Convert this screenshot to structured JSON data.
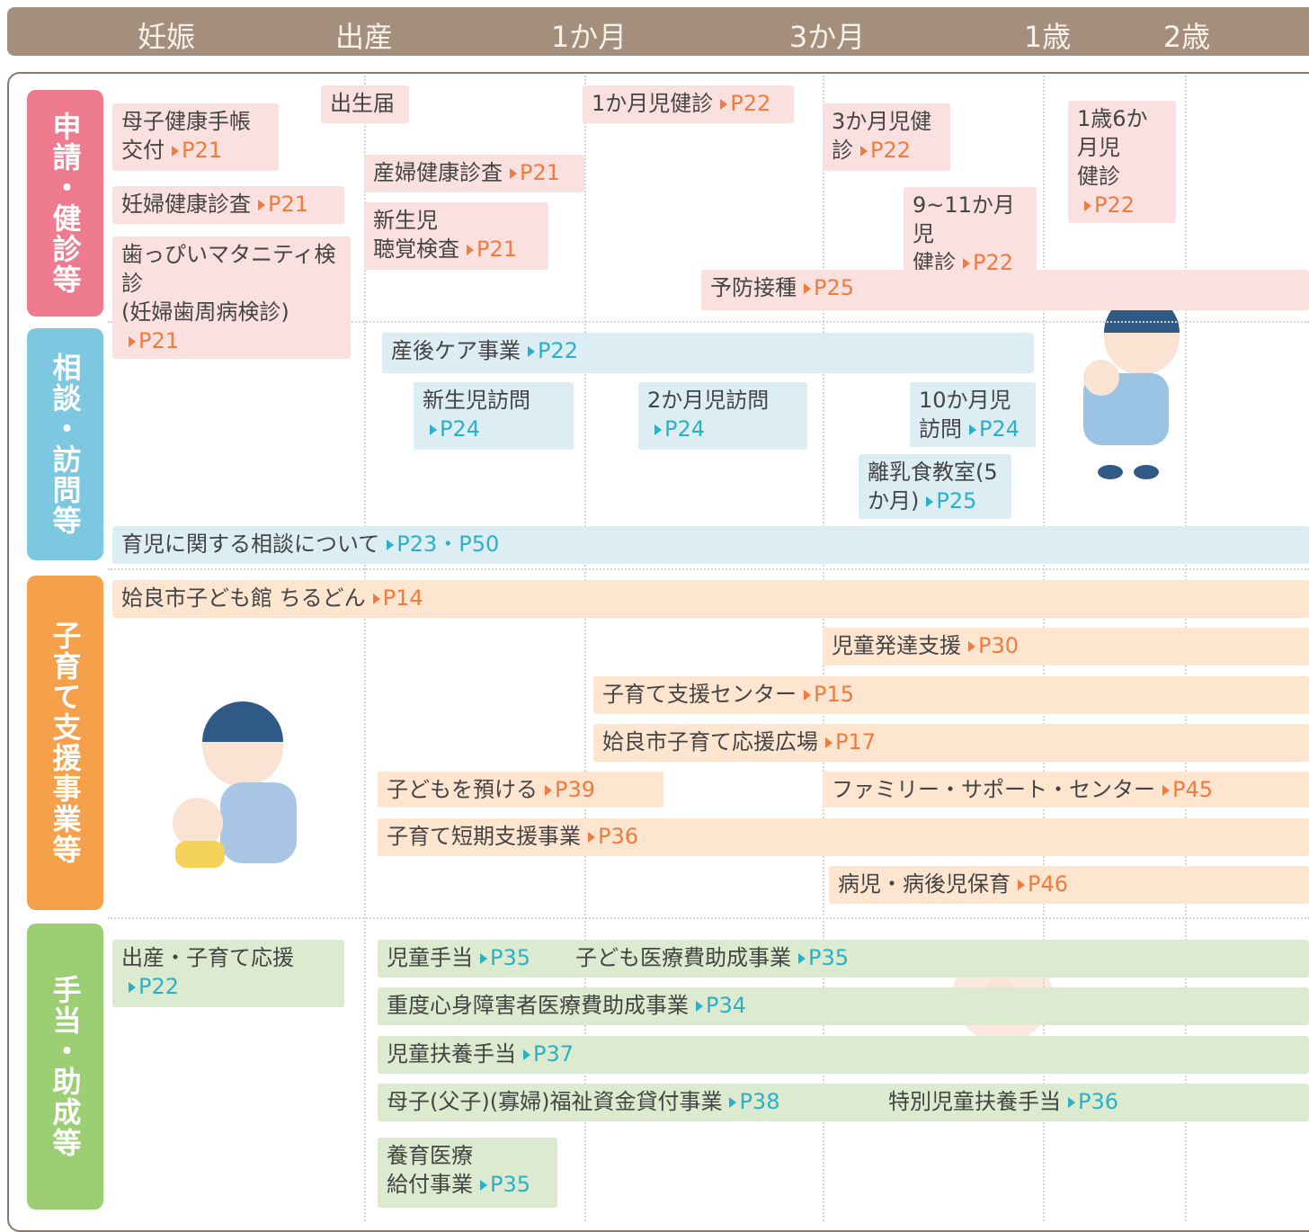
{
  "header": {
    "columns": [
      "妊娠",
      "出産",
      "1か月",
      "3か月",
      "1歳",
      "2歳"
    ]
  },
  "sections": [
    {
      "label": "申請・健診等",
      "items": [
        {
          "text": "母子健康手帳\n交付",
          "ref": "P21"
        },
        {
          "text": "妊婦健康診査",
          "ref": "P21"
        },
        {
          "text": "歯っぴいマタニティ検診\n(妊婦歯周病検診)",
          "ref": "P21"
        },
        {
          "text": "出生届"
        },
        {
          "text": "産婦健康診査",
          "ref": "P21"
        },
        {
          "text": "新生児\n聴覚検査",
          "ref": "P21"
        },
        {
          "text": "1か月児健診",
          "ref": "P22"
        },
        {
          "text": "3か月児健診",
          "ref": "P22"
        },
        {
          "text": "9~11か月児\n健診",
          "ref": "P22"
        },
        {
          "text": "1歳6か月児\n健診",
          "ref": "P22"
        },
        {
          "text": "予防接種",
          "ref": "P25"
        }
      ]
    },
    {
      "label": "相談・訪問等",
      "items": [
        {
          "text": "産後ケア事業",
          "ref": "P22"
        },
        {
          "text": "新生児訪問",
          "ref": "P24"
        },
        {
          "text": "2か月児訪問",
          "ref": "P24"
        },
        {
          "text": "10か月児訪問",
          "ref": "P24"
        },
        {
          "text": "離乳食教室(5か月)",
          "ref": "P25"
        },
        {
          "text": "育児に関する相談について",
          "ref": "P23・P50"
        }
      ]
    },
    {
      "label": "子育て支援事業等",
      "items": [
        {
          "text": "姶良市子ども館 ちるどん",
          "ref": "P14"
        },
        {
          "text": "児童発達支援",
          "ref": "P30"
        },
        {
          "text": "子育て支援センター",
          "ref": "P15"
        },
        {
          "text": "姶良市子育て応援広場",
          "ref": "P17"
        },
        {
          "text": "子どもを預ける",
          "ref": "P39"
        },
        {
          "text": "ファミリー・サポート・センター",
          "ref": "P45"
        },
        {
          "text": "子育て短期支援事業",
          "ref": "P36"
        },
        {
          "text": "病児・病後児保育",
          "ref": "P46"
        }
      ]
    },
    {
      "label": "手当・助成等",
      "items": [
        {
          "text": "出産・子育て応援",
          "ref": "P22"
        },
        {
          "text": "児童手当",
          "ref": "P35"
        },
        {
          "text": "子ども医療費助成事業",
          "ref": "P35"
        },
        {
          "text": "重度心身障害者医療費助成事業",
          "ref": "P34"
        },
        {
          "text": "児童扶養手当",
          "ref": "P37"
        },
        {
          "text": "母子(父子)(寡婦)福祉資金貸付事業",
          "ref": "P38"
        },
        {
          "text": "特別児童扶養手当",
          "ref": "P36"
        },
        {
          "text": "養育医療\n給付事業",
          "ref": "P35"
        }
      ]
    }
  ]
}
